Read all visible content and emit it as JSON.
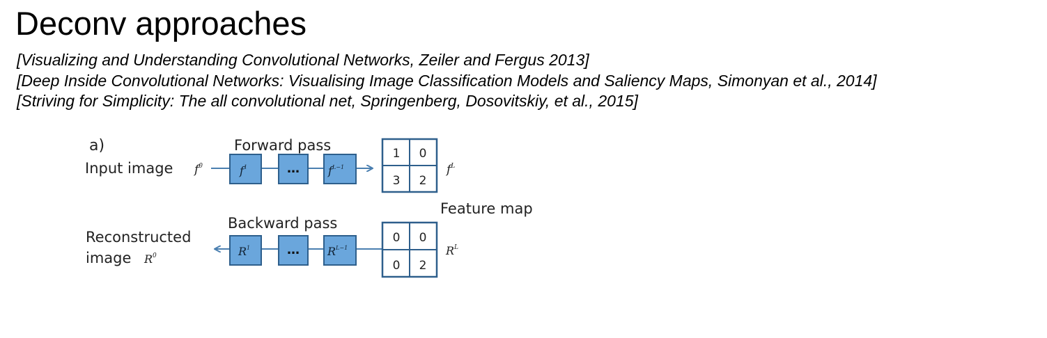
{
  "title": "Deconv approaches",
  "references": [
    "[Visualizing and Understanding Convolutional Networks, Zeiler and Fergus 2013]",
    "[Deep Inside Convolutional Networks: Visualising Image Classification Models and Saliency Maps, Simonyan et al., 2014]",
    "[Striving for Simplicity: The all convolutional net, Springenberg, Dosovitskiy, et al., 2015]"
  ],
  "diagram": {
    "panel_label": "a)",
    "forward": {
      "heading": "Forward pass",
      "input_label": "Input image",
      "input_symbol": "f",
      "input_sup": "0",
      "first_layer_symbol": "f",
      "first_layer_sup": "1",
      "ellipsis": "…",
      "last_layer_symbol": "f",
      "last_layer_sup": "L−1",
      "output_symbol": "f",
      "output_sup": "L",
      "grid_values": [
        "1",
        "0",
        "3",
        "2"
      ]
    },
    "feature_map_label": "Feature map",
    "backward": {
      "heading": "Backward pass",
      "output_label_line1": "Reconstructed",
      "output_label_line2": "image",
      "output_symbol": "R",
      "output_sup": "0",
      "first_layer_symbol": "R",
      "first_layer_sup": "1",
      "ellipsis": "…",
      "last_layer_symbol": "R",
      "last_layer_sup": "L−1",
      "input_symbol": "R",
      "input_sup": "L",
      "grid_values": [
        "0",
        "0",
        "0",
        "2"
      ]
    },
    "colors": {
      "layer_fill": "#6aa6dc",
      "layer_stroke": "#2e5f8c",
      "arrow": "#4a7fb0",
      "grid_stroke": "#2e5f8c"
    }
  }
}
